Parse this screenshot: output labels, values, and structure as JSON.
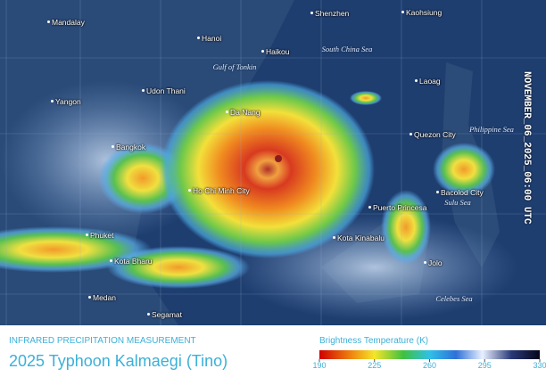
{
  "map": {
    "cities": [
      "Mandalay",
      "Hanoi",
      "Haikou",
      "Shenzhen",
      "Kaohsiung",
      "Yangon",
      "Udon Thani",
      "Da Nang",
      "Laoag",
      "Bangkok",
      "Quezon City",
      "Ho Chi Minh City",
      "Bacolod City",
      "Puerto Princesa",
      "Phuket",
      "Kota Bharu",
      "Kota Kinabalu",
      "Jolo",
      "Medan",
      "Segamat"
    ],
    "seas": [
      "South China Sea",
      "Gulf of Tonkin",
      "Philippine Sea",
      "Sulu Sea",
      "Celebes Sea"
    ],
    "timestamp": "NOVEMBER_06_2025_06:00 UTC"
  },
  "caption": {
    "subtitle": "INFRARED PRECIPITATION MEASUREMENT",
    "title": "2025 Typhoon Kalmaegi (Tino)"
  },
  "colorbar": {
    "label": "Brightness Temperature (K)",
    "range": [
      190,
      330
    ],
    "ticks": [
      190,
      225,
      260,
      295,
      330
    ]
  }
}
